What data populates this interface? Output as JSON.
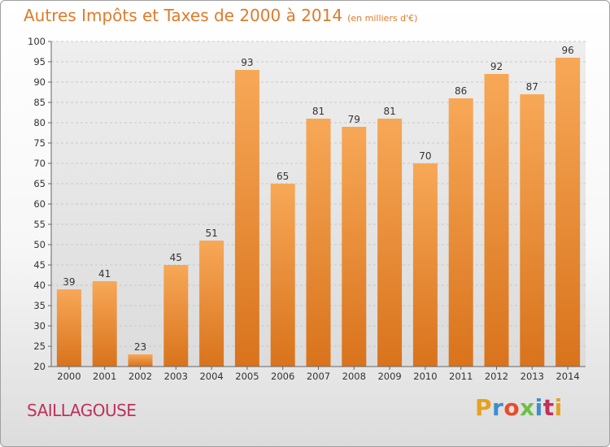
{
  "title": "Autres Impôts et Taxes de 2000 à 2014",
  "unit": "(en milliers d'€)",
  "place": "SAILLAGOUSE",
  "logo": {
    "letters": [
      "P",
      "r",
      "o",
      "x",
      "i",
      "t",
      "i"
    ],
    "colors": [
      "#e8a020",
      "#3a8fd0",
      "#e84d2a",
      "#6cc04a",
      "#3a8fd0",
      "#c0305a",
      "#e8a020"
    ]
  },
  "colors": {
    "bar_light": "#f7a857",
    "bar_dark": "#d9731c",
    "title": "#e07a2a",
    "place": "#c0305a"
  },
  "chart_data": {
    "type": "bar",
    "title": "Autres Impôts et Taxes de 2000 à 2014",
    "subtitle": "(en milliers d'€)",
    "xlabel": "",
    "ylabel": "",
    "categories": [
      "2000",
      "2001",
      "2002",
      "2003",
      "2004",
      "2005",
      "2006",
      "2007",
      "2008",
      "2009",
      "2010",
      "2011",
      "2012",
      "2013",
      "2014"
    ],
    "values": [
      39,
      41,
      23,
      45,
      51,
      93,
      65,
      81,
      79,
      81,
      70,
      86,
      92,
      87,
      96
    ],
    "ylim": [
      20,
      100
    ],
    "yticks": [
      "20",
      "25",
      "30",
      "35",
      "40",
      "45",
      "50",
      "55",
      "60",
      "65",
      "70",
      "75",
      "80",
      "85",
      "90",
      "95",
      "100"
    ],
    "grid": true
  }
}
